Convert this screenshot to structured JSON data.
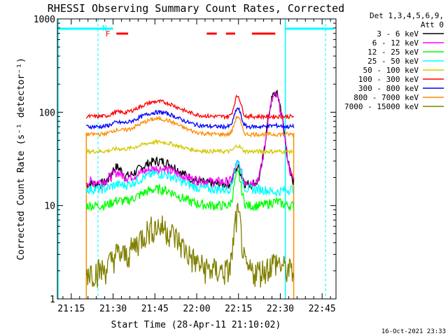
{
  "chart_data": {
    "type": "line",
    "title": "RHESSI Observing Summary Count Rates, Corrected",
    "xlabel": "Start Time (28-Apr-11 21:10:02)",
    "ylabel": "Corrected Count Rate (s⁻¹ detector⁻¹)",
    "y_scale": "log",
    "ylim": [
      1,
      1000
    ],
    "xlim_minutes": [
      21.167,
      22.833
    ],
    "x_tick_labels": [
      "21:15",
      "21:30",
      "21:45",
      "22:00",
      "22:15",
      "22:30",
      "22:45"
    ],
    "x_tick_hours": [
      21.25,
      21.5,
      21.75,
      22.0,
      22.25,
      22.5,
      22.75
    ],
    "y_tick_labels": [
      "1",
      "10",
      "100",
      "1000"
    ],
    "y_ticks": [
      1,
      10,
      100,
      1000
    ],
    "legend_header": [
      "Det 1,3,4,5,6,9,",
      "Att 0"
    ],
    "legend_placement": "right",
    "series": [
      {
        "name": "3 - 6 keV",
        "color": "#000000",
        "base": 17,
        "flare1": 30,
        "peak": 26,
        "flare2": 160
      },
      {
        "name": "6 - 12 keV",
        "color": "#ff00ff",
        "base": 18,
        "flare1": 25,
        "peak": 28,
        "flare2": 150
      },
      {
        "name": "12 - 25 keV",
        "color": "#00ff00",
        "base": 10,
        "flare1": 15,
        "peak": 22,
        "flare2": 11
      },
      {
        "name": "25 - 50 keV",
        "color": "#00ffff",
        "base": 15,
        "flare1": 22,
        "peak": 30,
        "flare2": 14
      },
      {
        "name": "50 - 100 keV",
        "color": "#d4c800",
        "base": 38,
        "flare1": 48,
        "peak": 44,
        "flare2": 38
      },
      {
        "name": "100 - 300 keV",
        "color": "#ff0000",
        "base": 90,
        "flare1": 130,
        "peak": 150,
        "flare2": 90
      },
      {
        "name": "300 - 800 keV",
        "color": "#0000ff",
        "base": 70,
        "flare1": 100,
        "peak": 110,
        "flare2": 72
      },
      {
        "name": "800 - 7000 keV",
        "color": "#ff8c00",
        "base": 58,
        "flare1": 85,
        "peak": 90,
        "flare2": 58
      },
      {
        "name": "7000 - 15000 keV",
        "color": "#808000",
        "base": 2,
        "flare1": 6,
        "peak": 8,
        "flare2": 2.5
      }
    ],
    "markers": {
      "N_label": "N",
      "F_label": "F",
      "eclipse_color": "#00ffff",
      "flare_color": "#ff0000"
    },
    "footer_timestamp": "16-Oct-2021 23:33"
  }
}
